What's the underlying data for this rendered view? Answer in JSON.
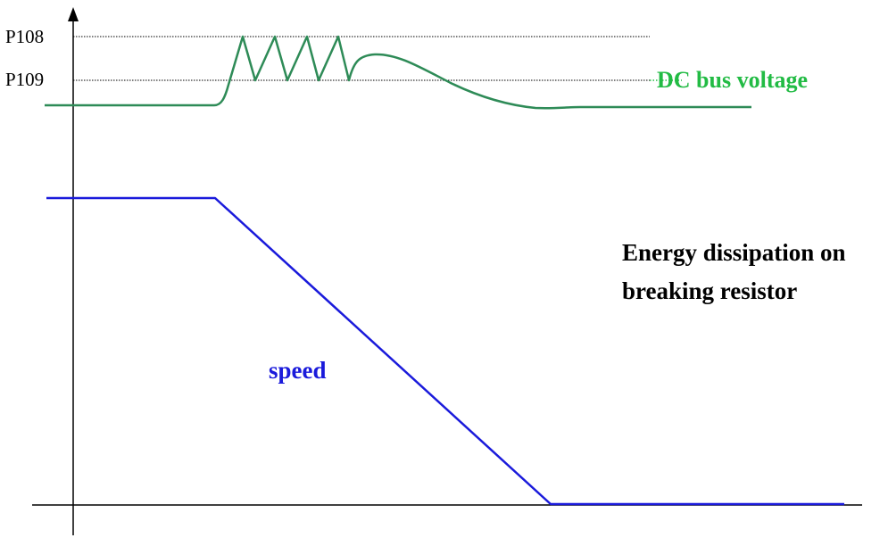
{
  "levels": {
    "p108": "P108",
    "p109": "P109"
  },
  "labels": {
    "dc_bus": "DC bus voltage",
    "speed": "speed",
    "energy_line1": "Energy dissipation on",
    "energy_line2": "breaking resistor"
  },
  "colors": {
    "dc_bus": "#2e8b57",
    "dc_bus_label": "#22bb44",
    "speed": "#1a1adb",
    "axis": "#000000"
  }
}
